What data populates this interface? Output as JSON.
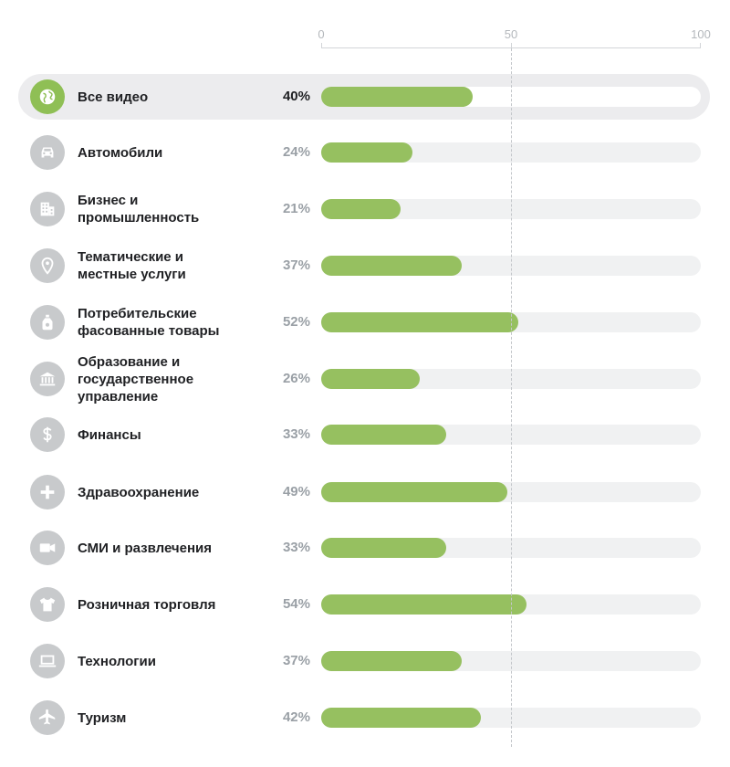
{
  "chart_data": {
    "type": "bar",
    "orientation": "horizontal",
    "xlim": [
      0,
      100
    ],
    "x_ticks": [
      "0",
      "50",
      "100"
    ],
    "reference_line": 50,
    "categories": [
      "Все видео",
      "Автомобили",
      "Бизнес и промышленность",
      "Тематические и местные услуги",
      "Потребительские фасованные товары",
      "Образование и государственное управление",
      "Финансы",
      "Здравоохранение",
      "СМИ и развлечения",
      "Розничная торговля",
      "Технологии",
      "Туризм"
    ],
    "values": [
      40,
      24,
      21,
      37,
      52,
      26,
      33,
      49,
      33,
      54,
      37,
      42
    ],
    "value_labels": [
      "40%",
      "24%",
      "21%",
      "37%",
      "52%",
      "26%",
      "33%",
      "49%",
      "33%",
      "54%",
      "37%",
      "42%"
    ],
    "highlighted_category": "Все видео"
  },
  "rows": [
    {
      "label_lines": [
        "Все видео"
      ],
      "icon": "globe-icon",
      "highlighted": true
    },
    {
      "label_lines": [
        "Автомобили"
      ],
      "icon": "car-icon",
      "highlighted": false
    },
    {
      "label_lines": [
        "Бизнес и",
        "промышленность"
      ],
      "icon": "building-icon",
      "highlighted": false
    },
    {
      "label_lines": [
        "Тематические и",
        "местные услуги"
      ],
      "icon": "location-pin-icon",
      "highlighted": false
    },
    {
      "label_lines": [
        "Потребительские",
        "фасованные товары"
      ],
      "icon": "bottle-icon",
      "highlighted": false
    },
    {
      "label_lines": [
        "Образование и",
        "государственное",
        "управление"
      ],
      "icon": "bank-icon",
      "highlighted": false
    },
    {
      "label_lines": [
        "Финансы"
      ],
      "icon": "dollar-icon",
      "highlighted": false
    },
    {
      "label_lines": [
        "Здравоохранение"
      ],
      "icon": "plus-icon",
      "highlighted": false
    },
    {
      "label_lines": [
        "СМИ и развлечения"
      ],
      "icon": "video-camera-icon",
      "highlighted": false
    },
    {
      "label_lines": [
        "Розничная торговля"
      ],
      "icon": "tshirt-icon",
      "highlighted": false
    },
    {
      "label_lines": [
        "Технологии"
      ],
      "icon": "laptop-icon",
      "highlighted": false
    },
    {
      "label_lines": [
        "Туризм"
      ],
      "icon": "airplane-icon",
      "highlighted": false
    }
  ],
  "colors": {
    "bar_fill": "#96c060",
    "track": "#f0f1f2",
    "icon_inactive": "#c8cacc",
    "icon_active": "#8fbf55",
    "highlight_row": "#ececee"
  }
}
